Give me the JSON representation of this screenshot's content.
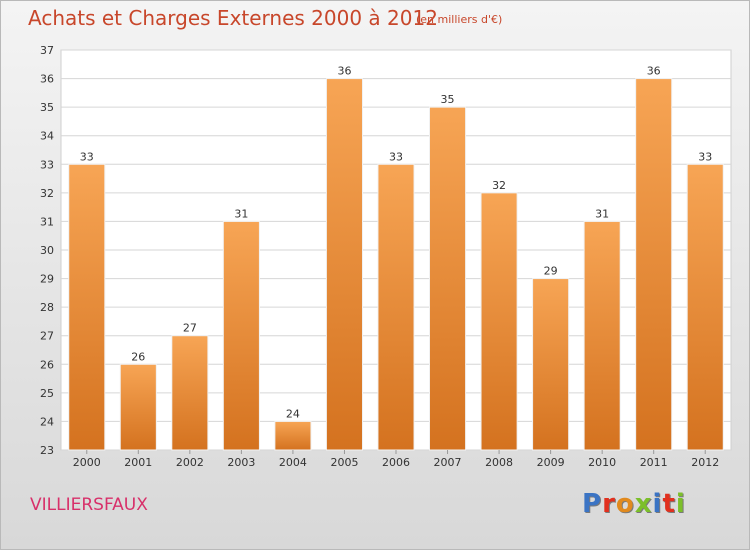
{
  "header": {
    "title": "Achats et Charges Externes 2000 à 2012",
    "unit": "(en milliers d'€)"
  },
  "footer": {
    "commune": "VILLIERSFAUX",
    "logo_letters": [
      "P",
      "r",
      "o",
      "x",
      "i",
      "t",
      "i"
    ],
    "logo_colors": [
      "#3b74c4",
      "#e1301e",
      "#e18a1e",
      "#7cbf2a",
      "#3b74c4",
      "#e1301e",
      "#7cbf2a"
    ]
  },
  "colors": {
    "bar_top": "#f7a555",
    "bar_bottom": "#d4721f",
    "text": "#333333",
    "title": "#c8472b",
    "commune": "#d8306a"
  },
  "chart_data": {
    "type": "bar",
    "title": "Achats et Charges Externes 2000 à 2012",
    "subtitle": "(en milliers d'€)",
    "xlabel": "",
    "ylabel": "",
    "categories": [
      "2000",
      "2001",
      "2002",
      "2003",
      "2004",
      "2005",
      "2006",
      "2007",
      "2008",
      "2009",
      "2010",
      "2011",
      "2012"
    ],
    "values": [
      33,
      26,
      27,
      31,
      24,
      36,
      33,
      35,
      32,
      29,
      31,
      36,
      33
    ],
    "ylim": [
      23,
      37
    ],
    "yticks": [
      23,
      24,
      25,
      26,
      27,
      28,
      29,
      30,
      31,
      32,
      33,
      34,
      35,
      36,
      37
    ],
    "grid": true,
    "data_labels": true
  }
}
